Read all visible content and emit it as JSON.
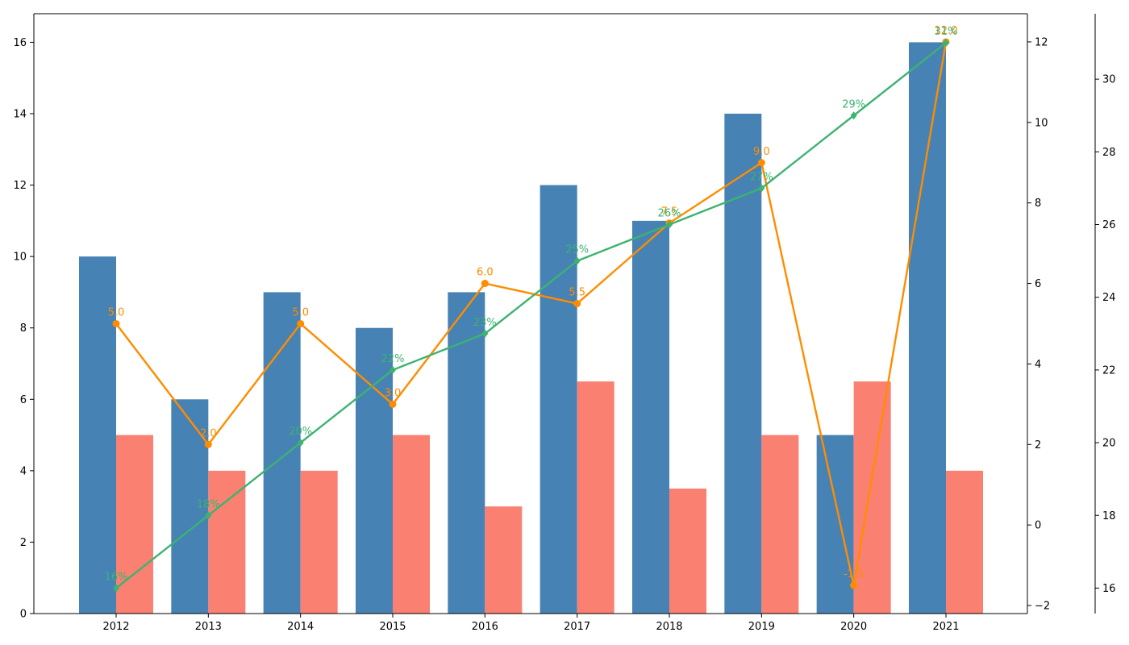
{
  "chart_data": {
    "type": "bar",
    "categories": [
      "2012",
      "2013",
      "2014",
      "2015",
      "2016",
      "2017",
      "2018",
      "2019",
      "2020",
      "2021"
    ],
    "series": [
      {
        "kind": "bar",
        "axis": "left",
        "color": "#4682b4",
        "values": [
          10,
          6,
          9,
          8,
          9,
          12,
          11,
          14,
          5,
          16
        ]
      },
      {
        "kind": "bar",
        "axis": "left",
        "color": "#fa8072",
        "values": [
          5,
          4,
          4,
          5,
          3,
          6.5,
          3.5,
          5,
          6.5,
          4
        ]
      },
      {
        "kind": "line",
        "axis": "right",
        "color": "#ff8c00",
        "marker": "circle",
        "values": [
          5.0,
          2.0,
          5.0,
          3.0,
          6.0,
          5.5,
          7.5,
          9.0,
          -1.5,
          12.0
        ],
        "labels": [
          "5.0",
          "2.0",
          "5.0",
          "3.0",
          "6.0",
          "5.5",
          "7.5",
          "9.0",
          "-1.5",
          "12.0"
        ]
      },
      {
        "kind": "line",
        "axis": "right2",
        "color": "#3cb371",
        "marker": "diamond",
        "values": [
          16,
          18,
          20,
          22,
          23,
          25,
          26,
          27,
          29,
          31
        ],
        "labels": [
          "16%",
          "18%",
          "20%",
          "22%",
          "23%",
          "25%",
          "26%",
          "27%",
          "29%",
          "31%"
        ]
      }
    ],
    "axes": {
      "left": {
        "min": 0,
        "max": 16.8,
        "ticks": [
          0,
          2,
          4,
          6,
          8,
          10,
          12,
          14,
          16
        ]
      },
      "right": {
        "min": -2.2,
        "max": 12.7,
        "ticks": [
          -2,
          0,
          2,
          4,
          6,
          8,
          10,
          12
        ]
      },
      "right2": {
        "min": 15.3,
        "max": 31.8,
        "ticks": [
          16,
          18,
          20,
          22,
          24,
          26,
          28,
          30
        ]
      }
    },
    "grid": false
  }
}
